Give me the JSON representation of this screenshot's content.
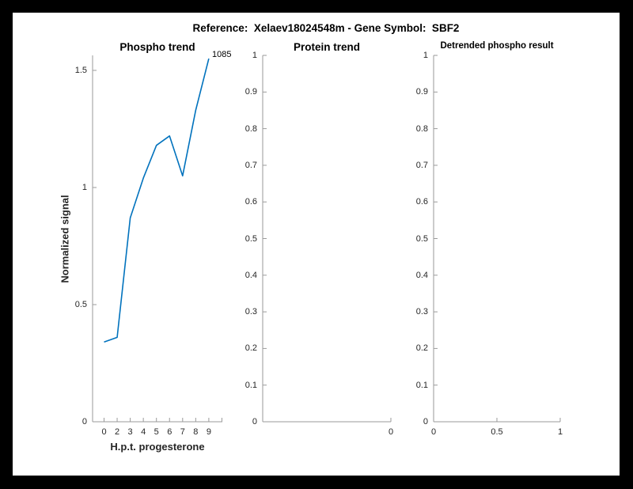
{
  "header": {
    "title": "Reference:  Xelaev18024548m - Gene Symbol:  SBF2"
  },
  "colors": {
    "frame_bg": "#000000",
    "page_bg": "#ffffff",
    "axis_line": "#9a9a9a",
    "tick_text": "#262626",
    "line_blue": "#0072BD"
  },
  "chart_data": [
    {
      "type": "line",
      "title": "Phospho trend",
      "xlabel": "H.p.t. progesterone",
      "ylabel": "Normalized signal",
      "x_tick_labels": [
        "0",
        "2",
        "3",
        "4",
        "5",
        "6",
        "7",
        "8",
        "9",
        ""
      ],
      "x_values": [
        0,
        2,
        3,
        4,
        5,
        6,
        7,
        8,
        9
      ],
      "values": [
        0.34,
        0.36,
        0.87,
        1.04,
        1.18,
        1.22,
        1.05,
        1.33,
        1.55
      ],
      "end_point_label": "1085",
      "ytick_values": [
        0,
        0.5,
        1,
        1.5
      ],
      "ytick_labels": [
        "0",
        "0.5",
        "1",
        "1.5"
      ],
      "ylim": [
        0,
        1.564
      ],
      "grid": false,
      "legend": null,
      "line_color": "#0072BD"
    },
    {
      "type": "line",
      "title": "Protein trend",
      "xlabel": "",
      "ylabel": "",
      "x_tick_labels": [
        "0"
      ],
      "values": [],
      "ytick_values": [
        0,
        0.1,
        0.2,
        0.3,
        0.4,
        0.5,
        0.6,
        0.7,
        0.8,
        0.9,
        1
      ],
      "ytick_labels": [
        "0",
        "0.1",
        "0.2",
        "0.3",
        "0.4",
        "0.5",
        "0.6",
        "0.7",
        "0.8",
        "0.9",
        "1"
      ],
      "ylim": [
        0,
        1
      ],
      "grid": false,
      "legend": null
    },
    {
      "type": "line",
      "title": "Detrended phospho result",
      "xlabel": "",
      "ylabel": "",
      "x_tick_labels": [
        "0",
        "0.5",
        "1"
      ],
      "x_tick_values": [
        0,
        0.5,
        1
      ],
      "values": [],
      "ytick_values": [
        0,
        0.1,
        0.2,
        0.3,
        0.4,
        0.5,
        0.6,
        0.7,
        0.8,
        0.9,
        1
      ],
      "ytick_labels": [
        "0",
        "0.1",
        "0.2",
        "0.3",
        "0.4",
        "0.5",
        "0.6",
        "0.7",
        "0.8",
        "0.9",
        "1"
      ],
      "ylim": [
        0,
        1
      ],
      "grid": false,
      "legend": null
    }
  ]
}
